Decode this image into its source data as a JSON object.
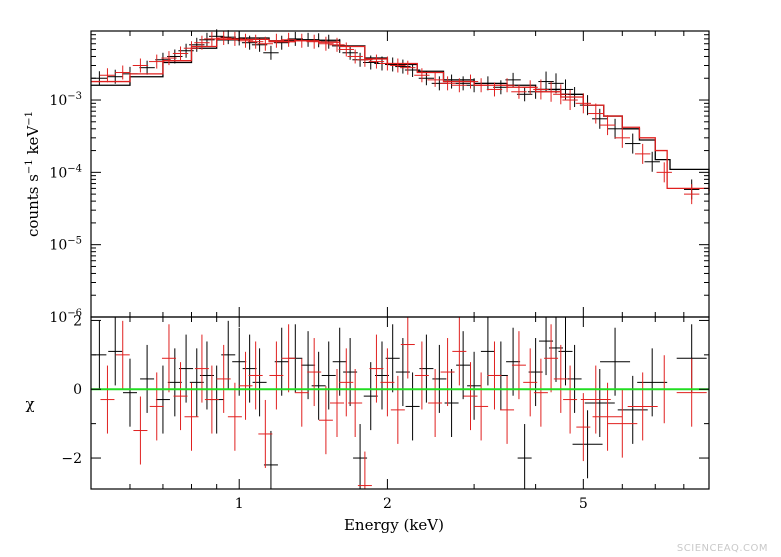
{
  "watermark": "SCIENCEAQ.COM",
  "colors": {
    "series_a": "#000000",
    "series_b": "#e0201f",
    "zero_line": "#22dd22"
  },
  "chart_data": [
    {
      "type": "scatter",
      "panel": "spectrum",
      "title": "",
      "xlabel": "",
      "ylabel_parts": [
        "counts s",
        "−1",
        " keV",
        "−1"
      ],
      "xscale": "log",
      "yscale": "log",
      "xlim": [
        0.5,
        9.0
      ],
      "ylim": [
        1e-06,
        0.009
      ],
      "y_ticks": [
        {
          "value": 0.001,
          "base": "10",
          "exp": "−3"
        },
        {
          "value": 0.0001,
          "base": "10",
          "exp": "−4"
        },
        {
          "value": 1e-05,
          "base": "10",
          "exp": "−5"
        },
        {
          "value": 1e-06,
          "base": "10",
          "exp": "−6"
        }
      ],
      "series": [
        {
          "color": "#000000",
          "points": [
            [
              0.52,
              0.002
            ],
            [
              0.56,
              0.0021
            ],
            [
              0.6,
              0.0023
            ],
            [
              0.65,
              0.0028
            ],
            [
              0.7,
              0.0036
            ],
            [
              0.74,
              0.004
            ],
            [
              0.78,
              0.0048
            ],
            [
              0.82,
              0.0058
            ],
            [
              0.86,
              0.0068
            ],
            [
              0.9,
              0.0076
            ],
            [
              0.95,
              0.0074
            ],
            [
              1.0,
              0.0071
            ],
            [
              1.05,
              0.0062
            ],
            [
              1.1,
              0.0058
            ],
            [
              1.16,
              0.0045
            ],
            [
              1.22,
              0.0062
            ],
            [
              1.3,
              0.007
            ],
            [
              1.38,
              0.0068
            ],
            [
              1.45,
              0.0067
            ],
            [
              1.52,
              0.0064
            ],
            [
              1.6,
              0.0056
            ],
            [
              1.68,
              0.0045
            ],
            [
              1.76,
              0.0036
            ],
            [
              1.85,
              0.0033
            ],
            [
              1.95,
              0.0032
            ],
            [
              2.05,
              0.0031
            ],
            [
              2.15,
              0.0029
            ],
            [
              2.25,
              0.0026
            ],
            [
              2.4,
              0.002
            ],
            [
              2.55,
              0.0017
            ],
            [
              2.7,
              0.0018
            ],
            [
              2.85,
              0.0017
            ],
            [
              3.0,
              0.0016
            ],
            [
              3.2,
              0.0017
            ],
            [
              3.4,
              0.0015
            ],
            [
              3.6,
              0.0019
            ],
            [
              3.8,
              0.0012
            ],
            [
              4.0,
              0.0013
            ],
            [
              4.2,
              0.0018
            ],
            [
              4.4,
              0.0017
            ],
            [
              4.6,
              0.0014
            ],
            [
              4.8,
              0.0011
            ],
            [
              5.1,
              0.00085
            ],
            [
              5.4,
              0.00055
            ],
            [
              5.8,
              0.0004
            ],
            [
              6.3,
              0.00025
            ],
            [
              6.9,
              0.00014
            ],
            [
              8.3,
              5.8e-05
            ]
          ],
          "model": [
            [
              0.5,
              0.0016
            ],
            [
              0.6,
              0.0021
            ],
            [
              0.7,
              0.0033
            ],
            [
              0.8,
              0.0052
            ],
            [
              0.9,
              0.0068
            ],
            [
              1.0,
              0.0072
            ],
            [
              1.15,
              0.0066
            ],
            [
              1.3,
              0.0068
            ],
            [
              1.45,
              0.0067
            ],
            [
              1.6,
              0.0056
            ],
            [
              1.8,
              0.0038
            ],
            [
              2.0,
              0.0031
            ],
            [
              2.3,
              0.0025
            ],
            [
              2.6,
              0.0019
            ],
            [
              3.0,
              0.0017
            ],
            [
              3.5,
              0.0016
            ],
            [
              4.0,
              0.0014
            ],
            [
              4.5,
              0.0012
            ],
            [
              5.0,
              0.00085
            ],
            [
              5.5,
              0.0006
            ],
            [
              6.0,
              0.0004
            ],
            [
              6.5,
              0.00028
            ],
            [
              7.0,
              0.00015
            ],
            [
              7.5,
              0.00011
            ],
            [
              9.0,
              5e-05
            ]
          ]
        },
        {
          "color": "#e0201f",
          "points": [
            [
              0.54,
              0.0022
            ],
            [
              0.58,
              0.0024
            ],
            [
              0.63,
              0.003
            ],
            [
              0.68,
              0.0034
            ],
            [
              0.72,
              0.0038
            ],
            [
              0.76,
              0.0044
            ],
            [
              0.8,
              0.0052
            ],
            [
              0.84,
              0.0062
            ],
            [
              0.88,
              0.007
            ],
            [
              0.93,
              0.0072
            ],
            [
              0.98,
              0.007
            ],
            [
              1.03,
              0.0066
            ],
            [
              1.08,
              0.0064
            ],
            [
              1.13,
              0.006
            ],
            [
              1.19,
              0.0066
            ],
            [
              1.26,
              0.0068
            ],
            [
              1.34,
              0.0066
            ],
            [
              1.42,
              0.0064
            ],
            [
              1.5,
              0.006
            ],
            [
              1.58,
              0.0058
            ],
            [
              1.65,
              0.005
            ],
            [
              1.72,
              0.004
            ],
            [
              1.8,
              0.0036
            ],
            [
              1.9,
              0.0034
            ],
            [
              2.0,
              0.0032
            ],
            [
              2.1,
              0.003
            ],
            [
              2.2,
              0.0028
            ],
            [
              2.35,
              0.0022
            ],
            [
              2.5,
              0.0019
            ],
            [
              2.65,
              0.0017
            ],
            [
              2.8,
              0.0016
            ],
            [
              2.95,
              0.0018
            ],
            [
              3.1,
              0.0016
            ],
            [
              3.3,
              0.0014
            ],
            [
              3.5,
              0.0016
            ],
            [
              3.7,
              0.0013
            ],
            [
              3.9,
              0.0015
            ],
            [
              4.1,
              0.0014
            ],
            [
              4.3,
              0.0013
            ],
            [
              4.5,
              0.0012
            ],
            [
              4.7,
              0.001
            ],
            [
              5.0,
              0.0009
            ],
            [
              5.3,
              0.00065
            ],
            [
              5.6,
              0.00045
            ],
            [
              6.0,
              0.0003
            ],
            [
              6.6,
              0.00018
            ],
            [
              7.3,
              0.0001
            ],
            [
              8.3,
              5e-05
            ]
          ],
          "model": [
            [
              0.5,
              0.0018
            ],
            [
              0.6,
              0.0023
            ],
            [
              0.7,
              0.0035
            ],
            [
              0.8,
              0.0055
            ],
            [
              0.9,
              0.0069
            ],
            [
              1.0,
              0.0069
            ],
            [
              1.15,
              0.0064
            ],
            [
              1.3,
              0.0066
            ],
            [
              1.45,
              0.0063
            ],
            [
              1.6,
              0.0055
            ],
            [
              1.8,
              0.0037
            ],
            [
              2.0,
              0.0032
            ],
            [
              2.3,
              0.0024
            ],
            [
              2.6,
              0.0018
            ],
            [
              3.0,
              0.0016
            ],
            [
              3.5,
              0.0015
            ],
            [
              4.0,
              0.0013
            ],
            [
              4.5,
              0.0011
            ],
            [
              5.0,
              0.00085
            ],
            [
              5.5,
              0.0006
            ],
            [
              6.0,
              0.00042
            ],
            [
              6.5,
              0.0003
            ],
            [
              7.0,
              0.0002
            ],
            [
              7.4,
              6e-05
            ],
            [
              9.0,
              5.5e-05
            ]
          ]
        }
      ]
    },
    {
      "type": "scatter",
      "panel": "residuals",
      "title": "",
      "xlabel": "Energy (keV)",
      "ylabel": "χ",
      "xscale": "log",
      "yscale": "linear",
      "xlim": [
        0.5,
        9.0
      ],
      "ylim": [
        -2.9,
        2.1
      ],
      "x_ticks": [
        {
          "value": 1,
          "label": "1"
        },
        {
          "value": 2,
          "label": "2"
        },
        {
          "value": 5,
          "label": "5"
        }
      ],
      "y_ticks": [
        {
          "value": 2,
          "label": "2"
        },
        {
          "value": 0,
          "label": "0"
        },
        {
          "value": -2,
          "label": "−2"
        }
      ],
      "zero_line": 0,
      "series": [
        {
          "color": "#000000",
          "points": [
            [
              0.52,
              1.0
            ],
            [
              0.56,
              1.1
            ],
            [
              0.6,
              -0.1
            ],
            [
              0.65,
              0.3
            ],
            [
              0.7,
              -0.3
            ],
            [
              0.74,
              0.2
            ],
            [
              0.78,
              0.6
            ],
            [
              0.82,
              0.2
            ],
            [
              0.86,
              0.4
            ],
            [
              0.9,
              -0.3
            ],
            [
              0.95,
              1.0
            ],
            [
              1.0,
              0.8
            ],
            [
              1.05,
              0.6
            ],
            [
              1.1,
              0.2
            ],
            [
              1.16,
              -2.2
            ],
            [
              1.22,
              0.8
            ],
            [
              1.3,
              0.9
            ],
            [
              1.38,
              0.7
            ],
            [
              1.45,
              0.1
            ],
            [
              1.52,
              0.4
            ],
            [
              1.6,
              0.8
            ],
            [
              1.68,
              0.5
            ],
            [
              1.76,
              -2.0
            ],
            [
              1.85,
              -0.2
            ],
            [
              1.95,
              0.4
            ],
            [
              2.05,
              0.9
            ],
            [
              2.15,
              0.5
            ],
            [
              2.25,
              -0.5
            ],
            [
              2.4,
              0.6
            ],
            [
              2.55,
              0.3
            ],
            [
              2.7,
              -0.4
            ],
            [
              2.85,
              0.7
            ],
            [
              3.0,
              0.1
            ],
            [
              3.2,
              1.1
            ],
            [
              3.4,
              0.4
            ],
            [
              3.6,
              0.8
            ],
            [
              3.8,
              -2.0
            ],
            [
              4.0,
              0.5
            ],
            [
              4.2,
              1.4
            ],
            [
              4.4,
              1.2
            ],
            [
              4.6,
              1.1
            ],
            [
              4.8,
              0.3
            ],
            [
              5.1,
              -1.6
            ],
            [
              5.4,
              -0.4
            ],
            [
              5.8,
              0.8
            ],
            [
              6.3,
              -0.6
            ],
            [
              6.9,
              0.2
            ],
            [
              8.3,
              0.9
            ]
          ]
        },
        {
          "color": "#e0201f",
          "points": [
            [
              0.54,
              -0.3
            ],
            [
              0.58,
              1.0
            ],
            [
              0.63,
              -1.2
            ],
            [
              0.68,
              -0.5
            ],
            [
              0.72,
              0.9
            ],
            [
              0.76,
              -0.2
            ],
            [
              0.8,
              -0.8
            ],
            [
              0.84,
              0.6
            ],
            [
              0.88,
              -0.3
            ],
            [
              0.93,
              0.3
            ],
            [
              0.98,
              -0.8
            ],
            [
              1.03,
              0.1
            ],
            [
              1.08,
              0.4
            ],
            [
              1.13,
              -1.3
            ],
            [
              1.19,
              0.4
            ],
            [
              1.26,
              0.9
            ],
            [
              1.34,
              -0.1
            ],
            [
              1.42,
              0.5
            ],
            [
              1.5,
              -0.9
            ],
            [
              1.58,
              -0.4
            ],
            [
              1.65,
              0.2
            ],
            [
              1.72,
              -0.4
            ],
            [
              1.8,
              -2.8
            ],
            [
              1.9,
              0.6
            ],
            [
              2.0,
              0.2
            ],
            [
              2.1,
              -0.6
            ],
            [
              2.2,
              1.3
            ],
            [
              2.35,
              0.4
            ],
            [
              2.5,
              -0.4
            ],
            [
              2.65,
              0.5
            ],
            [
              2.8,
              1.1
            ],
            [
              2.95,
              -0.2
            ],
            [
              3.1,
              -0.5
            ],
            [
              3.3,
              0.4
            ],
            [
              3.5,
              -0.6
            ],
            [
              3.7,
              0.7
            ],
            [
              3.9,
              0.2
            ],
            [
              4.1,
              -0.1
            ],
            [
              4.3,
              0.9
            ],
            [
              4.5,
              0.3
            ],
            [
              4.7,
              -0.3
            ],
            [
              5.0,
              -1.1
            ],
            [
              5.3,
              -0.3
            ],
            [
              5.6,
              -0.8
            ],
            [
              6.0,
              -1.0
            ],
            [
              6.6,
              -0.5
            ],
            [
              7.3,
              0.0
            ],
            [
              8.3,
              -0.1
            ]
          ]
        }
      ]
    }
  ]
}
